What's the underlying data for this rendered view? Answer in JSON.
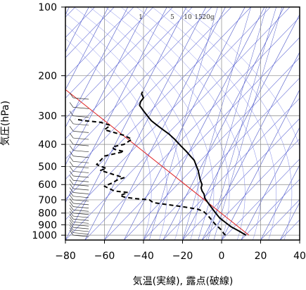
{
  "chart_data": {
    "type": "line",
    "title": "",
    "xlabel": "気温(実線), 露点(破線)",
    "ylabel": "気圧(hPa)",
    "xlim": [
      -80,
      40
    ],
    "ylim": [
      1050,
      100
    ],
    "yscale": "log",
    "grid": true,
    "x_ticks": [
      -80,
      -60,
      -40,
      -20,
      0,
      20,
      40
    ],
    "y_ticks": [
      100,
      200,
      300,
      400,
      500,
      600,
      700,
      800,
      900,
      1000
    ],
    "x_tick_labels": [
      "−80",
      "−60",
      "−40",
      "−20",
      "0",
      "20",
      "40"
    ],
    "y_tick_labels": [
      "100",
      "200",
      "300",
      "400",
      "500",
      "600",
      "700",
      "800",
      "900",
      "1000"
    ],
    "mixing_ratio_labels": [
      "1",
      "5",
      "10",
      "15",
      "20g"
    ],
    "mixing_ratio_values": [
      1,
      5,
      10,
      15,
      20
    ],
    "series": [
      {
        "style": "solid",
        "color": "#000000",
        "points": [
          [
            12.5,
            1000
          ],
          [
            9,
            960
          ],
          [
            5,
            920
          ],
          [
            2,
            880
          ],
          [
            -1,
            840
          ],
          [
            -3,
            800
          ],
          [
            -5,
            760
          ],
          [
            -7,
            720
          ],
          [
            -8.5,
            690
          ],
          [
            -9,
            660
          ],
          [
            -10,
            640
          ],
          [
            -10.5,
            620
          ],
          [
            -10,
            600
          ],
          [
            -11,
            570
          ],
          [
            -11.5,
            545
          ],
          [
            -12,
            520
          ],
          [
            -13,
            495
          ],
          [
            -14,
            470
          ],
          [
            -16,
            450
          ],
          [
            -18,
            430
          ],
          [
            -21,
            405
          ],
          [
            -24,
            380
          ],
          [
            -27,
            360
          ],
          [
            -30,
            345
          ],
          [
            -33,
            330
          ],
          [
            -36,
            315
          ],
          [
            -38,
            300
          ],
          [
            -40,
            285
          ],
          [
            -42,
            270
          ],
          [
            -41.5,
            260
          ],
          [
            -40,
            250
          ],
          [
            -41,
            240
          ],
          [
            -40.5,
            235
          ]
        ]
      },
      {
        "style": "dashed",
        "color": "#000000",
        "points": [
          [
            2,
            1000
          ],
          [
            1,
            980
          ],
          [
            0,
            950
          ],
          [
            -3,
            900
          ],
          [
            -5,
            860
          ],
          [
            -7,
            820
          ],
          [
            -9,
            790
          ],
          [
            -12,
            770
          ],
          [
            -20,
            750
          ],
          [
            -30,
            730
          ],
          [
            -35,
            720
          ],
          [
            -37,
            700
          ],
          [
            -45,
            690
          ],
          [
            -50,
            680
          ],
          [
            -52,
            670
          ],
          [
            -48,
            650
          ],
          [
            -55,
            640
          ],
          [
            -60,
            610
          ],
          [
            -56,
            590
          ],
          [
            -53,
            570
          ],
          [
            -50,
            560
          ],
          [
            -56,
            540
          ],
          [
            -62,
            520
          ],
          [
            -59,
            510
          ],
          [
            -64,
            490
          ],
          [
            -62,
            470
          ],
          [
            -60,
            450
          ],
          [
            -50,
            430
          ],
          [
            -55,
            420
          ],
          [
            -56,
            410
          ],
          [
            -50,
            400
          ],
          [
            -46,
            380
          ],
          [
            -50,
            365
          ],
          [
            -60,
            345
          ],
          [
            -57,
            330
          ],
          [
            -62,
            320
          ],
          [
            -70,
            315
          ],
          [
            -75,
            310
          ]
        ]
      }
    ],
    "colors": {
      "temperature": "#000000",
      "dewpoint": "#000000",
      "isotherms": "#4a55c8",
      "dry_adiabats": "#5a63d4",
      "moist_adiabats": "#7e86e8",
      "mixing_ratio": "#4a55c8",
      "parcel": "#e02020",
      "grid": "#888888"
    },
    "parcel_line": {
      "color": "#e02020",
      "from": [
        14,
        1000
      ],
      "to": [
        -80,
        230
      ]
    }
  }
}
